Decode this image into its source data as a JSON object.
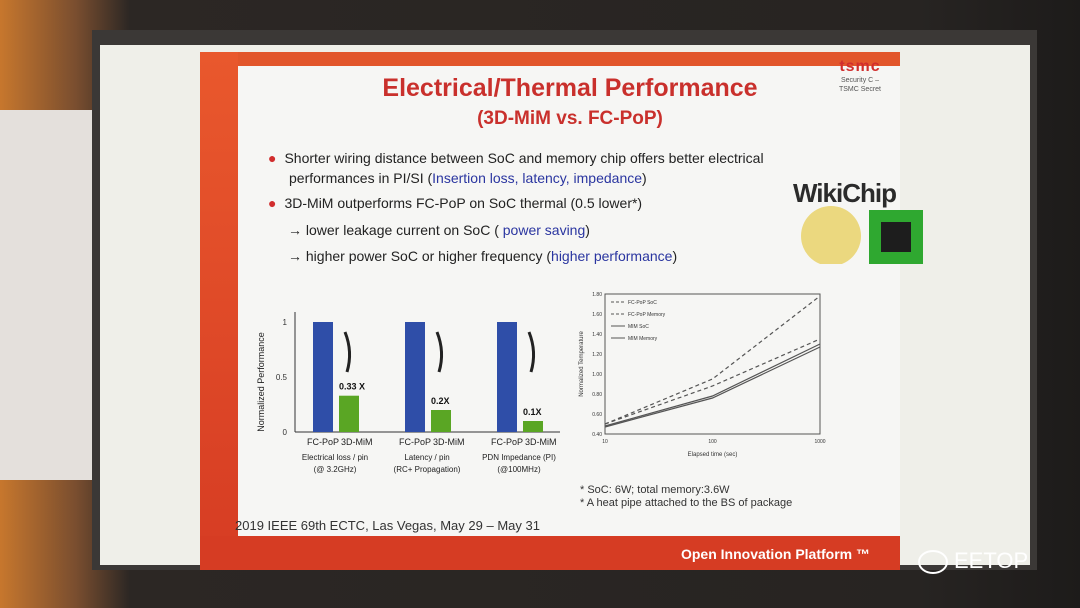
{
  "slide": {
    "title": "Electrical/Thermal Performance",
    "subtitle": "(3D-MiM vs. FC-PoP)",
    "logo": {
      "mark": "tsmc",
      "security_line1": "Security C –",
      "security_line2": "TSMC Secret"
    },
    "bullets": [
      {
        "text_a": "Shorter wiring distance between SoC and memory chip offers better electrical",
        "text_b": "performances in PI/SI (",
        "text_blue": "Insertion loss, latency, impedance",
        "text_c": ")"
      },
      {
        "text_a": "3D-MiM outperforms FC-PoP on SoC thermal (0.5 lower*)"
      }
    ],
    "sub_bullets": [
      {
        "text": "→ lower leakage current on SoC ( ",
        "blue": "power saving",
        "end": ")"
      },
      {
        "text": "→ higher power SoC or higher frequency (",
        "blue": "higher performance",
        "end": ")"
      }
    ],
    "notes": [
      "* SoC: 6W; total memory:3.6W",
      "* A heat pipe attached to the BS of package"
    ],
    "footer_left": "2019 IEEE 69th ECTC, Las Vegas, May 29 – May 31",
    "footer_right": "Open Innovation Platform ™"
  },
  "watermarks": {
    "wikichip": "WikiChip",
    "eetop": "EETOP"
  },
  "colors": {
    "accent": "#d63c23",
    "title": "#c9302c",
    "fcpop": "#2f4ea8",
    "mim": "#5aa624",
    "blue_text": "#2a35a0"
  },
  "chart_data": [
    {
      "type": "bar",
      "ylabel": "Normalized Performance",
      "ylim": [
        0,
        1
      ],
      "yticks": [
        "0",
        "0.5",
        "1"
      ],
      "groups": [
        {
          "xlabel1": "Electrical loss / pin",
          "xlabel2": "(@ 3.2GHz)",
          "fc": 1,
          "mim": 0.33,
          "label": "0.33 X"
        },
        {
          "xlabel1": "Latency / pin",
          "xlabel2": "(RC+ Propagation)",
          "fc": 1,
          "mim": 0.2,
          "label": "0.2X"
        },
        {
          "xlabel1": "PDN Impedance (PI)",
          "xlabel2": "(@100MHz)",
          "fc": 1,
          "mim": 0.1,
          "label": "0.1X"
        }
      ],
      "bar_labels": [
        "FC-PoP",
        "3D-MiM"
      ]
    },
    {
      "type": "line",
      "xlabel": "Elapsed time (sec)",
      "ylabel": "Normalized Temperature",
      "yticks": [
        "0.40",
        "0.60",
        "0.80",
        "1.00",
        "1.20",
        "1.40",
        "1.60",
        "1.80"
      ],
      "xticks": [
        "10",
        "100",
        "1000"
      ],
      "ylim": [
        0.4,
        1.8
      ],
      "series": [
        {
          "name": "FC-PoP SoC",
          "dash": true,
          "x": [
            10,
            100,
            1000
          ],
          "y": [
            0.5,
            0.95,
            1.78
          ]
        },
        {
          "name": "FC-PoP Memory",
          "dash": true,
          "x": [
            10,
            100,
            1000
          ],
          "y": [
            0.5,
            0.88,
            1.35
          ]
        },
        {
          "name": "MIM SoC",
          "dash": false,
          "x": [
            10,
            100,
            1000
          ],
          "y": [
            0.48,
            0.78,
            1.3
          ]
        },
        {
          "name": "MIM Memory",
          "dash": false,
          "x": [
            10,
            100,
            1000
          ],
          "y": [
            0.47,
            0.76,
            1.27
          ]
        }
      ]
    }
  ]
}
